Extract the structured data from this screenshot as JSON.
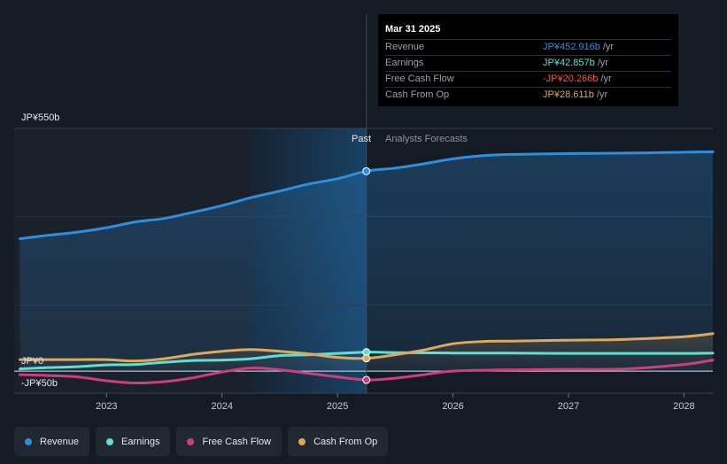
{
  "colors": {
    "revenue": "#2d8fe0",
    "earnings": "#5fe0d3",
    "free_cash_flow": "#cc3f7e",
    "cash_from_op": "#e0a85a",
    "fcf_negative_text": "#ff4d4d"
  },
  "chart_data": {
    "type": "line",
    "title": "",
    "xlabel": "",
    "ylabel": "",
    "ylim": [
      -50,
      550
    ],
    "y_axis_labels": [
      "JP¥550b",
      "JP¥0",
      "-JP¥50b"
    ],
    "x_ticks": [
      2023,
      2024,
      2025,
      2026,
      2027,
      2028
    ],
    "x_tick_labels": [
      "2023",
      "2024",
      "2025",
      "2026",
      "2027",
      "2028"
    ],
    "xlim": [
      2022.2,
      2028.25
    ],
    "past_label": "Past",
    "forecast_label": "Analysts Forecasts",
    "past_region_start": 2024.25,
    "forecast_start": 2025.25,
    "series": [
      {
        "key": "revenue",
        "name": "Revenue",
        "area": true,
        "x": [
          2022.25,
          2022.5,
          2022.75,
          2023.0,
          2023.25,
          2023.5,
          2023.75,
          2024.0,
          2024.25,
          2024.5,
          2024.75,
          2025.0,
          2025.25,
          2025.5,
          2025.75,
          2026.0,
          2026.25,
          2026.5,
          2026.75,
          2027.0,
          2027.5,
          2028.0,
          2028.25
        ],
        "values": [
          300,
          308,
          315,
          325,
          338,
          346,
          360,
          375,
          393,
          408,
          424,
          436,
          453,
          460,
          470,
          481,
          488,
          491,
          492,
          493,
          494,
          496,
          497
        ]
      },
      {
        "key": "earnings",
        "name": "Earnings",
        "x": [
          2022.25,
          2022.5,
          2022.75,
          2023.0,
          2023.25,
          2023.5,
          2023.75,
          2024.0,
          2024.25,
          2024.5,
          2024.75,
          2025.0,
          2025.25,
          2025.5,
          2026.0,
          2026.5,
          2027.0,
          2027.5,
          2028.0,
          2028.25
        ],
        "values": [
          5,
          8,
          10,
          14,
          15,
          20,
          24,
          25,
          28,
          35,
          37,
          40,
          43,
          42,
          41,
          41,
          40,
          40,
          40,
          41
        ]
      },
      {
        "key": "free_cash_flow",
        "name": "Free Cash Flow",
        "x": [
          2022.25,
          2022.5,
          2022.75,
          2023.0,
          2023.25,
          2023.5,
          2023.75,
          2024.0,
          2024.25,
          2024.5,
          2024.75,
          2025.0,
          2025.25,
          2025.5,
          2025.75,
          2026.0,
          2026.5,
          2027.0,
          2027.5,
          2028.0,
          2028.25
        ],
        "values": [
          -8,
          -10,
          -13,
          -22,
          -27,
          -24,
          -15,
          -2,
          7,
          3,
          -5,
          -13,
          -20,
          -16,
          -8,
          0,
          3,
          4,
          5,
          15,
          25
        ]
      },
      {
        "key": "cash_from_op",
        "name": "Cash From Op",
        "x": [
          2022.25,
          2022.5,
          2022.75,
          2023.0,
          2023.25,
          2023.5,
          2023.75,
          2024.0,
          2024.25,
          2024.5,
          2024.75,
          2025.0,
          2025.25,
          2025.5,
          2025.75,
          2026.0,
          2026.25,
          2026.5,
          2027.0,
          2027.5,
          2028.0,
          2028.25
        ],
        "values": [
          26,
          26,
          26,
          26,
          23,
          28,
          38,
          45,
          49,
          45,
          39,
          31,
          29,
          37,
          48,
          62,
          67,
          68,
          70,
          72,
          78,
          85
        ]
      }
    ],
    "highlight": {
      "x": 2025.25,
      "date": "Mar 31 2025",
      "rows": [
        {
          "key": "revenue",
          "label": "Revenue",
          "value": "JP¥452.916b",
          "unit": "/yr"
        },
        {
          "key": "earnings",
          "label": "Earnings",
          "value": "JP¥42.857b",
          "unit": "/yr"
        },
        {
          "key": "free_cash_flow",
          "label": "Free Cash Flow",
          "value": "-JP¥20.266b",
          "unit": "/yr"
        },
        {
          "key": "cash_from_op",
          "label": "Cash From Op",
          "value": "JP¥28.611b",
          "unit": "/yr"
        }
      ]
    }
  },
  "legend": {
    "items": [
      {
        "key": "revenue",
        "label": "Revenue"
      },
      {
        "key": "earnings",
        "label": "Earnings"
      },
      {
        "key": "free_cash_flow",
        "label": "Free Cash Flow"
      },
      {
        "key": "cash_from_op",
        "label": "Cash From Op"
      }
    ]
  }
}
